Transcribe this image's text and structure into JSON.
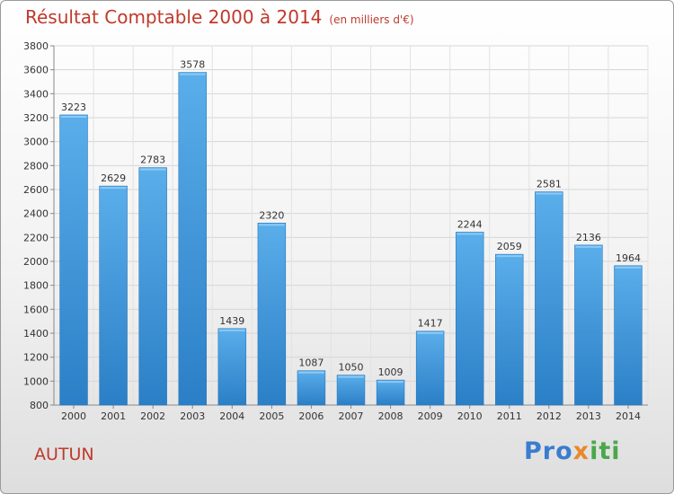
{
  "chart_data": {
    "type": "bar",
    "title": "Résultat Comptable 2000 à 2014",
    "subtitle": "(en milliers d'€)",
    "categories": [
      "2000",
      "2001",
      "2002",
      "2003",
      "2004",
      "2005",
      "2006",
      "2007",
      "2008",
      "2009",
      "2010",
      "2011",
      "2012",
      "2013",
      "2014"
    ],
    "values": [
      3223,
      2629,
      2783,
      3578,
      1439,
      2320,
      1087,
      1050,
      1009,
      1417,
      2244,
      2059,
      2581,
      2136,
      1964
    ],
    "ylim": [
      800,
      3800
    ],
    "yticks": [
      800,
      1000,
      1200,
      1400,
      1600,
      1800,
      2000,
      2200,
      2400,
      2600,
      2800,
      3000,
      3200,
      3400,
      3600,
      3800
    ],
    "grid": true,
    "bar_color": "#3f95dc"
  },
  "label": "AUTUN",
  "logo": {
    "part1": "Pro",
    "part2": "x",
    "part3": "iti"
  }
}
